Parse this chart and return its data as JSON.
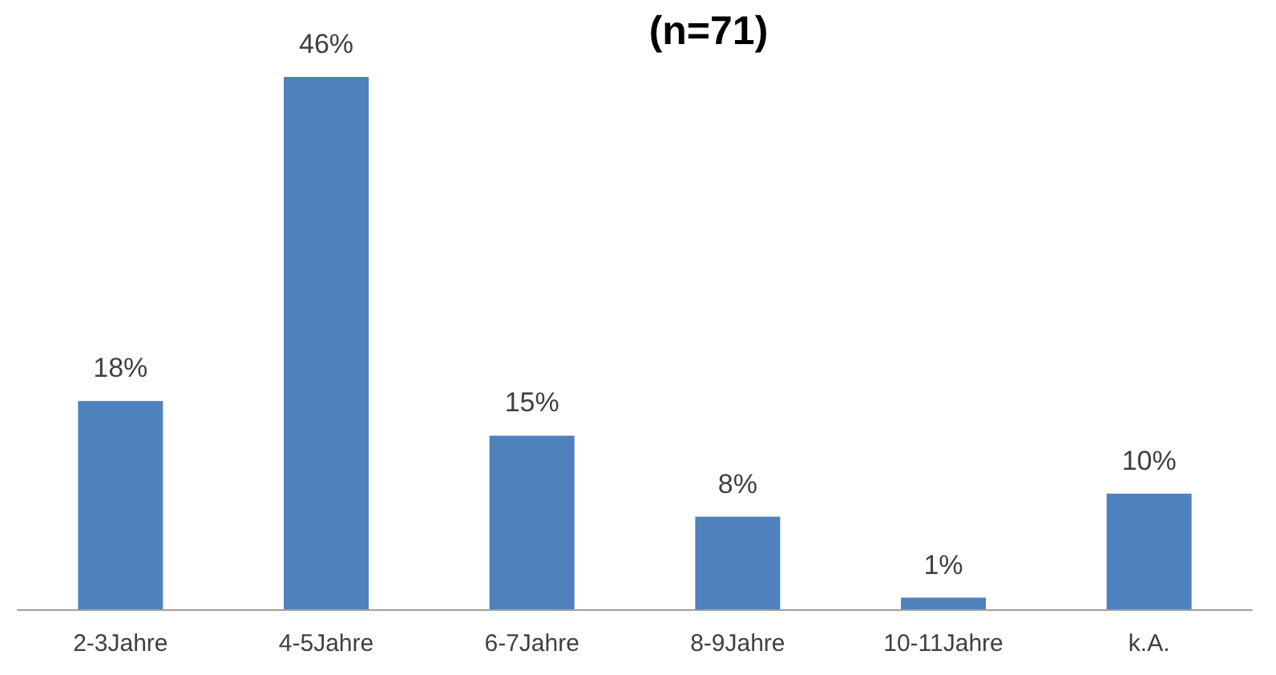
{
  "chart_data": {
    "type": "bar",
    "title": "(n=71)",
    "categories": [
      "2-3Jahre",
      "4-5Jahre",
      "6-7Jahre",
      "8-9Jahre",
      "10-11Jahre",
      "k.A."
    ],
    "values": [
      18,
      46,
      15,
      8,
      1,
      10
    ],
    "value_labels": [
      "18%",
      "46%",
      "15%",
      "8%",
      "1%",
      "10%"
    ],
    "color": "#4f81bd"
  }
}
